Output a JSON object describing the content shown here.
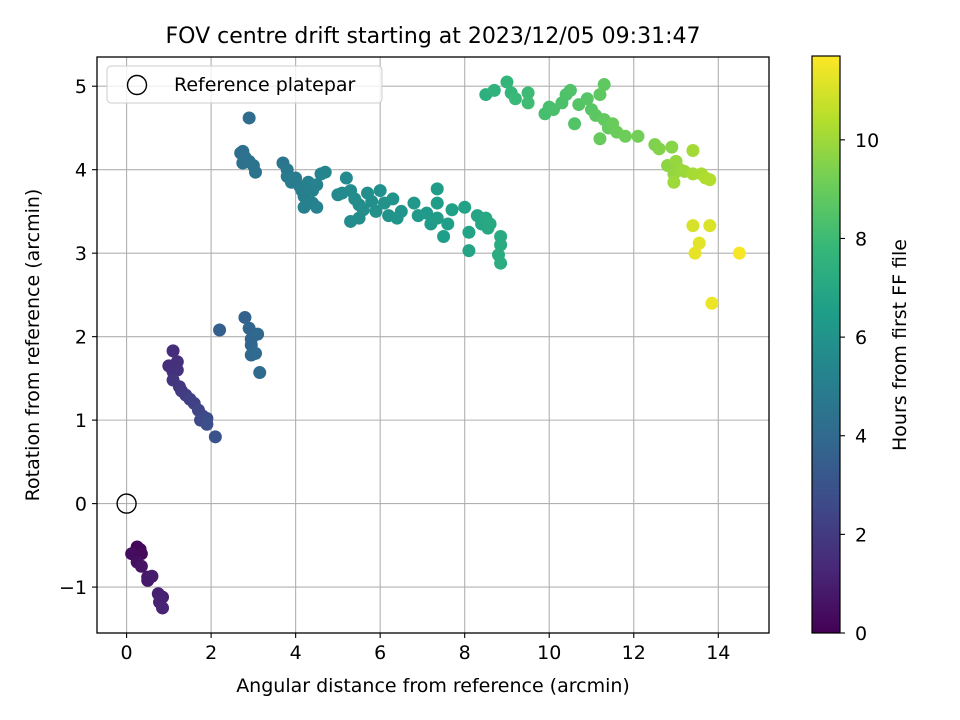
{
  "chart_data": {
    "type": "scatter",
    "title": "FOV centre drift starting at 2023/12/05 09:31:47",
    "xlabel": "Angular distance from reference (arcmin)",
    "ylabel": "Rotation from reference (arcmin)",
    "xlim": [
      -0.7,
      15.2
    ],
    "ylim": [
      -1.55,
      5.35
    ],
    "x_ticks": [
      0,
      2,
      4,
      6,
      8,
      10,
      12,
      14
    ],
    "y_ticks": [
      -1,
      0,
      1,
      2,
      3,
      4,
      5
    ],
    "grid": true,
    "legend": {
      "position": "top-left",
      "entries": [
        "Reference platepar"
      ]
    },
    "reference_point": {
      "x": 0,
      "y": 0
    },
    "colorbar": {
      "label": "Hours from first FF file",
      "colormap": "viridis",
      "range": [
        0,
        11.7
      ],
      "ticks": [
        0,
        2,
        4,
        6,
        8,
        10
      ]
    },
    "series": [
      {
        "color_value_field": "t",
        "points": [
          {
            "x": 0.25,
            "y": -0.52,
            "t": 0.1
          },
          {
            "x": 0.32,
            "y": -0.55,
            "t": 0.2
          },
          {
            "x": 0.12,
            "y": -0.6,
            "t": 0.4
          },
          {
            "x": 0.35,
            "y": -0.6,
            "t": 0.3
          },
          {
            "x": 0.25,
            "y": -0.7,
            "t": 0.5
          },
          {
            "x": 0.35,
            "y": -0.75,
            "t": 0.6
          },
          {
            "x": 0.5,
            "y": -0.88,
            "t": 0.7
          },
          {
            "x": 0.5,
            "y": -0.92,
            "t": 0.8
          },
          {
            "x": 0.6,
            "y": -0.87,
            "t": 0.85
          },
          {
            "x": 0.75,
            "y": -1.08,
            "t": 1.0
          },
          {
            "x": 0.85,
            "y": -1.12,
            "t": 1.05
          },
          {
            "x": 0.78,
            "y": -1.18,
            "t": 1.1
          },
          {
            "x": 0.85,
            "y": -1.25,
            "t": 1.15
          },
          {
            "x": 1.1,
            "y": 1.83,
            "t": 1.5
          },
          {
            "x": 1.2,
            "y": 1.7,
            "t": 1.6
          },
          {
            "x": 1.0,
            "y": 1.65,
            "t": 1.55
          },
          {
            "x": 1.1,
            "y": 1.58,
            "t": 1.65
          },
          {
            "x": 1.2,
            "y": 1.6,
            "t": 1.7
          },
          {
            "x": 1.1,
            "y": 1.48,
            "t": 1.8
          },
          {
            "x": 1.25,
            "y": 1.4,
            "t": 1.9
          },
          {
            "x": 1.3,
            "y": 1.35,
            "t": 2.0
          },
          {
            "x": 1.4,
            "y": 1.3,
            "t": 2.1
          },
          {
            "x": 1.5,
            "y": 1.25,
            "t": 2.2
          },
          {
            "x": 1.6,
            "y": 1.2,
            "t": 2.3
          },
          {
            "x": 1.7,
            "y": 1.12,
            "t": 2.4
          },
          {
            "x": 1.8,
            "y": 1.05,
            "t": 2.5
          },
          {
            "x": 1.75,
            "y": 1.0,
            "t": 2.6
          },
          {
            "x": 1.9,
            "y": 1.02,
            "t": 2.7
          },
          {
            "x": 1.9,
            "y": 0.95,
            "t": 2.8
          },
          {
            "x": 2.1,
            "y": 0.8,
            "t": 3.0
          },
          {
            "x": 2.2,
            "y": 2.08,
            "t": 3.5
          },
          {
            "x": 2.8,
            "y": 2.23,
            "t": 3.7
          },
          {
            "x": 2.9,
            "y": 2.1,
            "t": 3.75
          },
          {
            "x": 2.95,
            "y": 1.97,
            "t": 3.8
          },
          {
            "x": 2.95,
            "y": 1.9,
            "t": 3.85
          },
          {
            "x": 3.1,
            "y": 2.03,
            "t": 3.9
          },
          {
            "x": 2.95,
            "y": 1.78,
            "t": 3.95
          },
          {
            "x": 3.05,
            "y": 1.8,
            "t": 4.0
          },
          {
            "x": 3.15,
            "y": 1.57,
            "t": 4.05
          },
          {
            "x": 2.9,
            "y": 4.62,
            "t": 4.1
          },
          {
            "x": 2.7,
            "y": 4.2,
            "t": 4.2
          },
          {
            "x": 2.75,
            "y": 4.22,
            "t": 4.25
          },
          {
            "x": 2.8,
            "y": 4.15,
            "t": 4.3
          },
          {
            "x": 2.75,
            "y": 4.08,
            "t": 4.35
          },
          {
            "x": 2.9,
            "y": 4.1,
            "t": 4.4
          },
          {
            "x": 3.0,
            "y": 4.05,
            "t": 4.45
          },
          {
            "x": 3.05,
            "y": 3.97,
            "t": 4.5
          },
          {
            "x": 3.7,
            "y": 4.08,
            "t": 4.6
          },
          {
            "x": 3.8,
            "y": 4.0,
            "t": 4.7
          },
          {
            "x": 3.8,
            "y": 3.92,
            "t": 4.8
          },
          {
            "x": 3.9,
            "y": 3.85,
            "t": 4.85
          },
          {
            "x": 4.0,
            "y": 3.9,
            "t": 4.9
          },
          {
            "x": 4.1,
            "y": 3.8,
            "t": 4.95
          },
          {
            "x": 4.15,
            "y": 3.75,
            "t": 5.0
          },
          {
            "x": 4.2,
            "y": 3.68,
            "t": 5.05
          },
          {
            "x": 4.3,
            "y": 3.85,
            "t": 5.1
          },
          {
            "x": 4.4,
            "y": 3.75,
            "t": 5.15
          },
          {
            "x": 4.5,
            "y": 3.82,
            "t": 5.2
          },
          {
            "x": 4.6,
            "y": 3.95,
            "t": 5.3
          },
          {
            "x": 4.7,
            "y": 3.97,
            "t": 5.35
          },
          {
            "x": 4.2,
            "y": 3.55,
            "t": 5.1
          },
          {
            "x": 4.4,
            "y": 3.6,
            "t": 5.15
          },
          {
            "x": 4.5,
            "y": 3.55,
            "t": 5.2
          },
          {
            "x": 5.0,
            "y": 3.7,
            "t": 5.5
          },
          {
            "x": 5.1,
            "y": 3.72,
            "t": 5.55
          },
          {
            "x": 5.3,
            "y": 3.75,
            "t": 5.6
          },
          {
            "x": 5.2,
            "y": 3.9,
            "t": 5.55
          },
          {
            "x": 5.4,
            "y": 3.65,
            "t": 5.65
          },
          {
            "x": 5.5,
            "y": 3.58,
            "t": 5.7
          },
          {
            "x": 5.7,
            "y": 3.72,
            "t": 5.75
          },
          {
            "x": 5.8,
            "y": 3.62,
            "t": 5.8
          },
          {
            "x": 5.3,
            "y": 3.38,
            "t": 5.65
          },
          {
            "x": 5.5,
            "y": 3.42,
            "t": 5.7
          },
          {
            "x": 5.6,
            "y": 3.52,
            "t": 5.75
          },
          {
            "x": 5.9,
            "y": 3.5,
            "t": 5.85
          },
          {
            "x": 6.0,
            "y": 3.75,
            "t": 5.9
          },
          {
            "x": 6.1,
            "y": 3.6,
            "t": 5.95
          },
          {
            "x": 6.3,
            "y": 3.65,
            "t": 6.0
          },
          {
            "x": 6.2,
            "y": 3.45,
            "t": 6.0
          },
          {
            "x": 6.5,
            "y": 3.5,
            "t": 6.05
          },
          {
            "x": 6.4,
            "y": 3.42,
            "t": 6.1
          },
          {
            "x": 6.8,
            "y": 3.6,
            "t": 6.2
          },
          {
            "x": 6.9,
            "y": 3.45,
            "t": 6.25
          },
          {
            "x": 7.1,
            "y": 3.48,
            "t": 6.3
          },
          {
            "x": 7.2,
            "y": 3.35,
            "t": 6.35
          },
          {
            "x": 7.35,
            "y": 3.42,
            "t": 6.4
          },
          {
            "x": 7.35,
            "y": 3.6,
            "t": 6.45
          },
          {
            "x": 7.35,
            "y": 3.77,
            "t": 6.4
          },
          {
            "x": 7.5,
            "y": 3.2,
            "t": 6.5
          },
          {
            "x": 7.6,
            "y": 3.35,
            "t": 6.55
          },
          {
            "x": 7.7,
            "y": 3.52,
            "t": 6.6
          },
          {
            "x": 8.0,
            "y": 3.55,
            "t": 6.7
          },
          {
            "x": 8.1,
            "y": 3.25,
            "t": 6.75
          },
          {
            "x": 8.1,
            "y": 3.03,
            "t": 6.8
          },
          {
            "x": 8.3,
            "y": 3.45,
            "t": 6.85
          },
          {
            "x": 8.4,
            "y": 3.35,
            "t": 6.9
          },
          {
            "x": 8.5,
            "y": 3.42,
            "t": 6.95
          },
          {
            "x": 8.55,
            "y": 3.3,
            "t": 7.0
          },
          {
            "x": 8.6,
            "y": 3.35,
            "t": 7.05
          },
          {
            "x": 8.85,
            "y": 3.2,
            "t": 7.1
          },
          {
            "x": 8.85,
            "y": 3.1,
            "t": 7.15
          },
          {
            "x": 8.8,
            "y": 2.98,
            "t": 7.2
          },
          {
            "x": 8.85,
            "y": 2.88,
            "t": 7.25
          },
          {
            "x": 8.5,
            "y": 4.9,
            "t": 7.4
          },
          {
            "x": 8.7,
            "y": 4.95,
            "t": 7.5
          },
          {
            "x": 9.0,
            "y": 5.05,
            "t": 7.7
          },
          {
            "x": 9.1,
            "y": 4.92,
            "t": 7.8
          },
          {
            "x": 9.2,
            "y": 4.85,
            "t": 7.9
          },
          {
            "x": 9.5,
            "y": 4.92,
            "t": 8.0
          },
          {
            "x": 9.5,
            "y": 4.8,
            "t": 8.05
          },
          {
            "x": 9.9,
            "y": 4.67,
            "t": 8.2
          },
          {
            "x": 10.0,
            "y": 4.75,
            "t": 8.25
          },
          {
            "x": 10.1,
            "y": 4.72,
            "t": 8.3
          },
          {
            "x": 10.3,
            "y": 4.8,
            "t": 8.35
          },
          {
            "x": 10.4,
            "y": 4.9,
            "t": 8.4
          },
          {
            "x": 10.5,
            "y": 4.95,
            "t": 8.45
          },
          {
            "x": 10.6,
            "y": 4.55,
            "t": 8.5
          },
          {
            "x": 10.7,
            "y": 4.78,
            "t": 8.55
          },
          {
            "x": 10.9,
            "y": 4.85,
            "t": 8.6
          },
          {
            "x": 11.0,
            "y": 4.72,
            "t": 8.65
          },
          {
            "x": 11.1,
            "y": 4.65,
            "t": 8.7
          },
          {
            "x": 11.2,
            "y": 4.9,
            "t": 8.75
          },
          {
            "x": 11.3,
            "y": 5.02,
            "t": 8.8
          },
          {
            "x": 11.3,
            "y": 4.6,
            "t": 8.85
          },
          {
            "x": 11.4,
            "y": 4.5,
            "t": 8.9
          },
          {
            "x": 11.2,
            "y": 4.37,
            "t": 8.95
          },
          {
            "x": 11.5,
            "y": 4.55,
            "t": 9.0
          },
          {
            "x": 11.6,
            "y": 4.45,
            "t": 9.05
          },
          {
            "x": 11.8,
            "y": 4.4,
            "t": 9.1
          },
          {
            "x": 12.1,
            "y": 4.4,
            "t": 9.2
          },
          {
            "x": 12.5,
            "y": 4.3,
            "t": 9.4
          },
          {
            "x": 12.6,
            "y": 4.25,
            "t": 9.5
          },
          {
            "x": 12.9,
            "y": 4.27,
            "t": 9.6
          },
          {
            "x": 12.8,
            "y": 4.05,
            "t": 9.7
          },
          {
            "x": 12.95,
            "y": 3.95,
            "t": 9.8
          },
          {
            "x": 13.0,
            "y": 4.1,
            "t": 9.85
          },
          {
            "x": 13.1,
            "y": 4.0,
            "t": 9.9
          },
          {
            "x": 13.2,
            "y": 3.98,
            "t": 9.95
          },
          {
            "x": 12.95,
            "y": 3.85,
            "t": 10.0
          },
          {
            "x": 13.4,
            "y": 4.23,
            "t": 10.1
          },
          {
            "x": 13.4,
            "y": 3.95,
            "t": 10.15
          },
          {
            "x": 13.6,
            "y": 3.95,
            "t": 10.2
          },
          {
            "x": 13.7,
            "y": 3.9,
            "t": 10.3
          },
          {
            "x": 13.8,
            "y": 3.88,
            "t": 10.35
          },
          {
            "x": 13.4,
            "y": 3.33,
            "t": 11.0
          },
          {
            "x": 13.8,
            "y": 3.33,
            "t": 11.1
          },
          {
            "x": 13.55,
            "y": 3.12,
            "t": 11.2
          },
          {
            "x": 13.45,
            "y": 3.0,
            "t": 11.3
          },
          {
            "x": 13.85,
            "y": 2.4,
            "t": 11.4
          },
          {
            "x": 14.5,
            "y": 3.0,
            "t": 11.6
          }
        ]
      }
    ]
  }
}
